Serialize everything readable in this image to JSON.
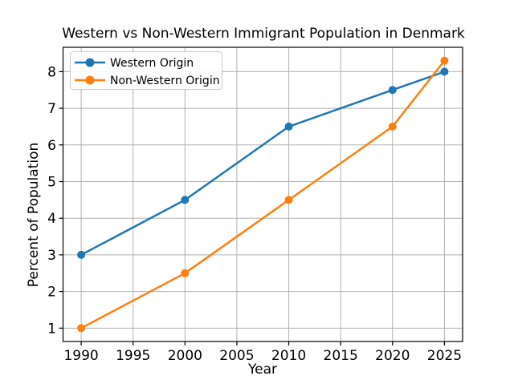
{
  "chart_data": {
    "type": "line",
    "title": "Western vs Non-Western Immigrant Population in Denmark",
    "xlabel": "Year",
    "ylabel": "Percent of Population",
    "x": [
      1990,
      2000,
      2010,
      2020,
      2025
    ],
    "series": [
      {
        "name": "Western Origin",
        "color": "#1f77b4",
        "values": [
          3.0,
          4.5,
          6.5,
          7.5,
          8.0
        ]
      },
      {
        "name": "Non-Western Origin",
        "color": "#ff7f0e",
        "values": [
          1.0,
          2.5,
          4.5,
          6.5,
          8.3
        ]
      }
    ],
    "xticks": [
      1990,
      1995,
      2000,
      2005,
      2010,
      2015,
      2020,
      2025
    ],
    "yticks": [
      1,
      2,
      3,
      4,
      5,
      6,
      7,
      8
    ],
    "xlim": [
      1988.25,
      2026.75
    ],
    "ylim": [
      0.635,
      8.665
    ],
    "grid": true,
    "grid_color": "#b0b0b0",
    "background": "#ffffff",
    "legend_position": "upper left",
    "marker": "o"
  }
}
